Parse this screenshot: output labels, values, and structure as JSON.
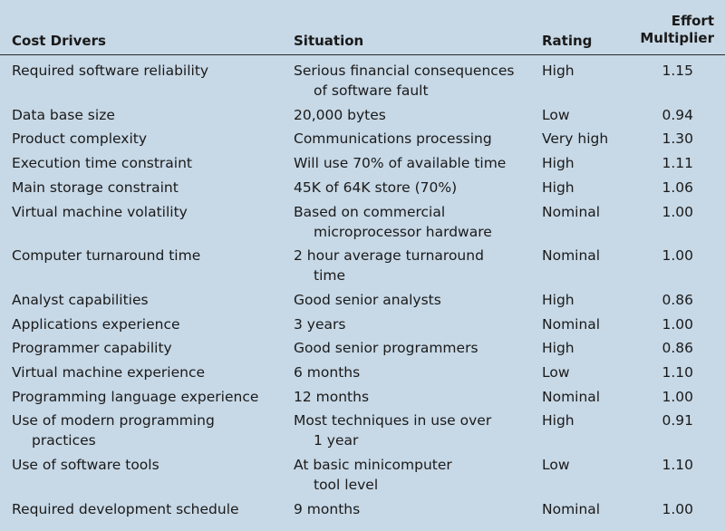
{
  "headers": {
    "cost_drivers": "Cost Drivers",
    "situation": "Situation",
    "rating": "Rating",
    "effort_line1": "Effort",
    "effort_line2": "Multiplier"
  },
  "rows": [
    {
      "driver": [
        "Required software reliability"
      ],
      "situation": [
        "Serious financial consequences",
        "of software fault"
      ],
      "rating": "High",
      "multiplier": "1.15"
    },
    {
      "driver": [
        "Data base size"
      ],
      "situation": [
        "20,000 bytes"
      ],
      "rating": "Low",
      "multiplier": "0.94"
    },
    {
      "driver": [
        "Product complexity"
      ],
      "situation": [
        "Communications processing"
      ],
      "rating": "Very high",
      "multiplier": "1.30"
    },
    {
      "driver": [
        "Execution time constraint"
      ],
      "situation": [
        "Will use 70% of available time"
      ],
      "rating": "High",
      "multiplier": "1.11"
    },
    {
      "driver": [
        "Main storage constraint"
      ],
      "situation": [
        "45K of 64K store (70%)"
      ],
      "rating": "High",
      "multiplier": "1.06"
    },
    {
      "driver": [
        "Virtual machine volatility"
      ],
      "situation": [
        "Based on commercial",
        "microprocessor hardware"
      ],
      "rating": "Nominal",
      "multiplier": "1.00"
    },
    {
      "driver": [
        "Computer turnaround time"
      ],
      "situation": [
        "2 hour average turnaround",
        "time"
      ],
      "rating": "Nominal",
      "multiplier": "1.00"
    },
    {
      "driver": [
        "Analyst capabilities"
      ],
      "situation": [
        "Good senior analysts"
      ],
      "rating": "High",
      "multiplier": "0.86"
    },
    {
      "driver": [
        "Applications experience"
      ],
      "situation": [
        "3 years"
      ],
      "rating": "Nominal",
      "multiplier": "1.00"
    },
    {
      "driver": [
        "Programmer capability"
      ],
      "situation": [
        "Good senior programmers"
      ],
      "rating": "High",
      "multiplier": "0.86"
    },
    {
      "driver": [
        "Virtual machine experience"
      ],
      "situation": [
        "6 months"
      ],
      "rating": "Low",
      "multiplier": "1.10"
    },
    {
      "driver": [
        "Programming language experience"
      ],
      "situation": [
        "12 months"
      ],
      "rating": "Nominal",
      "multiplier": "1.00"
    },
    {
      "driver": [
        "Use of modern programming",
        "practices"
      ],
      "situation": [
        "Most techniques in use over",
        "1 year"
      ],
      "rating": "High",
      "multiplier": "0.91"
    },
    {
      "driver": [
        "Use of software tools"
      ],
      "situation": [
        "At basic minicomputer",
        "tool level"
      ],
      "rating": "Low",
      "multiplier": "1.10"
    },
    {
      "driver": [
        "Required development schedule"
      ],
      "situation": [
        "9 months"
      ],
      "rating": "Nominal",
      "multiplier": "1.00"
    }
  ]
}
